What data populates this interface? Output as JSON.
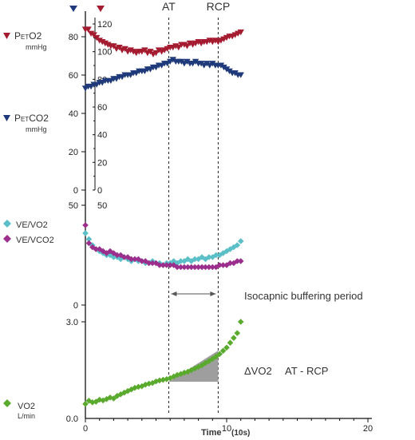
{
  "chart_data": {
    "type": "scatter",
    "title": "",
    "xlabel": "Time",
    "xlabel_unit": "(10s)",
    "x_ticks": [
      "0",
      "10",
      "20"
    ],
    "xlim": [
      0,
      20
    ],
    "grid": false,
    "thresholds": [
      {
        "label": "AT",
        "x": 5.9
      },
      {
        "label": "RCP",
        "x": 9.4
      }
    ],
    "annotations": {
      "buffering": "Isocapnic buffering period",
      "dvo2": "ΔVO2",
      "dvo2_range": "AT - RCP"
    },
    "panels": [
      {
        "id": "gas",
        "left_ticks": [
          "80",
          "60",
          "40",
          "20",
          "0"
        ],
        "right_ticks": [
          "120",
          "100",
          "80",
          "60",
          "40",
          "20",
          "0"
        ],
        "marker_colors": [
          "#1f3a7a",
          "#a51c30"
        ],
        "series": [
          {
            "name": "PETO2",
            "label_main": "P",
            "label_sub": "ET",
            "label_tail": "O2",
            "unit": "mmHg",
            "color": "#a51c30",
            "marker": "triangle-down",
            "scale": [
              0,
              120
            ],
            "x": [
              0,
              0.2,
              0.4,
              0.6,
              0.8,
              1,
              1.2,
              1.4,
              1.6,
              1.8,
              2,
              2.2,
              2.4,
              2.6,
              2.8,
              3,
              3.2,
              3.4,
              3.6,
              3.8,
              4,
              4.2,
              4.4,
              4.6,
              4.8,
              5,
              5.2,
              5.4,
              5.6,
              5.8,
              6,
              6.2,
              6.4,
              6.6,
              6.8,
              7,
              7.2,
              7.4,
              7.6,
              7.8,
              8,
              8.2,
              8.4,
              8.6,
              8.8,
              9,
              9.2,
              9.4,
              9.6,
              9.8,
              10,
              10.2,
              10.4,
              10.6,
              10.8,
              11
            ],
            "y": [
              116,
              116,
              113,
              112,
              110,
              108,
              107,
              106,
              105,
              104,
              104,
              102,
              103,
              101,
              102,
              100,
              101,
              100,
              99,
              100,
              100,
              101,
              99,
              100,
              98,
              99,
              101,
              100,
              101,
              102,
              103,
              103,
              104,
              103,
              105,
              105,
              104,
              106,
              105,
              106,
              107,
              106,
              107,
              107,
              108,
              107,
              108,
              107,
              108,
              109,
              110,
              111,
              111,
              112,
              113,
              114
            ]
          },
          {
            "name": "PETCO2",
            "label_main": "P",
            "label_sub": "ET",
            "label_tail": "CO2",
            "unit": "mmHg",
            "color": "#1f3a7a",
            "marker": "triangle-down",
            "scale": [
              0,
              80
            ],
            "x": [
              0,
              0.2,
              0.4,
              0.6,
              0.8,
              1,
              1.2,
              1.4,
              1.6,
              1.8,
              2,
              2.2,
              2.4,
              2.6,
              2.8,
              3,
              3.2,
              3.4,
              3.6,
              3.8,
              4,
              4.2,
              4.4,
              4.6,
              4.8,
              5,
              5.2,
              5.4,
              5.6,
              5.8,
              6,
              6.2,
              6.4,
              6.6,
              6.8,
              7,
              7.2,
              7.4,
              7.6,
              7.8,
              8,
              8.2,
              8.4,
              8.6,
              8.8,
              9,
              9.2,
              9.4,
              9.6,
              9.8,
              10,
              10.2,
              10.4,
              10.6,
              10.8,
              11
            ],
            "y": [
              53,
              54,
              54,
              55,
              55,
              56,
              56,
              57,
              57,
              57,
              58,
              58,
              59,
              59,
              60,
              60,
              60,
              61,
              61,
              62,
              62,
              62,
              63,
              63,
              64,
              64,
              65,
              65,
              66,
              66,
              67,
              68,
              67,
              67,
              67,
              66,
              67,
              66,
              66,
              67,
              66,
              66,
              65,
              66,
              65,
              66,
              65,
              65,
              65,
              64,
              63,
              62,
              61,
              61,
              60,
              60
            ]
          }
        ]
      },
      {
        "id": "ventilatory",
        "left_ticks": [
          "50",
          "0"
        ],
        "right_ticks": [
          "50"
        ],
        "scale": [
          0,
          50
        ],
        "series": [
          {
            "name": "VE/VO2",
            "label": "VE/VO2",
            "color": "#5bbfc8",
            "marker": "diamond",
            "x": [
              0,
              0.25,
              0.5,
              0.75,
              1,
              1.25,
              1.5,
              1.75,
              2,
              2.25,
              2.5,
              2.75,
              3,
              3.25,
              3.5,
              3.75,
              4,
              4.25,
              4.5,
              4.75,
              5,
              5.25,
              5.5,
              5.75,
              6,
              6.25,
              6.5,
              6.75,
              7,
              7.25,
              7.5,
              7.75,
              8,
              8.25,
              8.5,
              8.75,
              9,
              9.25,
              9.5,
              9.75,
              10,
              10.25,
              10.5,
              10.75,
              11
            ],
            "y": [
              36,
              33,
              30,
              28,
              27,
              26,
              25,
              25,
              24,
              24,
              23,
              24,
              23,
              22,
              23,
              22,
              22,
              21,
              21,
              22,
              21,
              21,
              20,
              21,
              21,
              22,
              21,
              22,
              22,
              23,
              22,
              23,
              23,
              24,
              23,
              24,
              24,
              25,
              25,
              26,
              27,
              28,
              29,
              30,
              32
            ]
          },
          {
            "name": "VE/VCO2",
            "label": "VE/VCO2",
            "color": "#9c2f8e",
            "marker": "diamond",
            "x": [
              0,
              0.25,
              0.5,
              0.75,
              1,
              1.25,
              1.5,
              1.75,
              2,
              2.25,
              2.5,
              2.75,
              3,
              3.25,
              3.5,
              3.75,
              4,
              4.25,
              4.5,
              4.75,
              5,
              5.25,
              5.5,
              5.75,
              6,
              6.25,
              6.5,
              6.75,
              7,
              7.25,
              7.5,
              7.75,
              8,
              8.25,
              8.5,
              8.75,
              9,
              9.25,
              9.5,
              9.75,
              10,
              10.25,
              10.5,
              10.75,
              11
            ],
            "y": [
              40,
              31,
              29,
              28,
              28,
              27,
              26,
              27,
              26,
              25,
              25,
              24,
              24,
              23,
              23,
              23,
              22,
              22,
              21,
              21,
              21,
              20,
              20,
              20,
              20,
              20,
              19,
              19,
              19,
              19,
              19,
              19,
              19,
              19,
              19,
              19,
              19,
              19,
              20,
              20,
              20,
              21,
              21,
              22,
              22
            ]
          }
        ]
      },
      {
        "id": "vo2",
        "left_ticks": [
          "3.0",
          "0.0"
        ],
        "scale": [
          0,
          3
        ],
        "series": [
          {
            "name": "VO2",
            "label": "VO2",
            "unit": "L/min",
            "color": "#5aaa2e",
            "marker": "diamond",
            "x": [
              0,
              0.25,
              0.5,
              0.75,
              1,
              1.25,
              1.5,
              1.75,
              2,
              2.25,
              2.5,
              2.75,
              3,
              3.25,
              3.5,
              3.75,
              4,
              4.25,
              4.5,
              4.75,
              5,
              5.25,
              5.5,
              5.75,
              6,
              6.25,
              6.5,
              6.75,
              7,
              7.25,
              7.5,
              7.75,
              8,
              8.25,
              8.5,
              8.75,
              9,
              9.25,
              9.5,
              9.75,
              10,
              10.25,
              10.5,
              10.75,
              11
            ],
            "y": [
              0.45,
              0.55,
              0.5,
              0.52,
              0.58,
              0.56,
              0.6,
              0.65,
              0.62,
              0.7,
              0.75,
              0.8,
              0.85,
              0.9,
              0.95,
              0.98,
              1.0,
              1.05,
              1.08,
              1.1,
              1.15,
              1.18,
              1.2,
              1.22,
              1.25,
              1.3,
              1.35,
              1.38,
              1.42,
              1.45,
              1.5,
              1.55,
              1.6,
              1.65,
              1.72,
              1.78,
              1.85,
              1.92,
              2.0,
              2.1,
              2.2,
              2.35,
              2.5,
              2.65,
              3.0
            ]
          }
        ]
      }
    ]
  }
}
